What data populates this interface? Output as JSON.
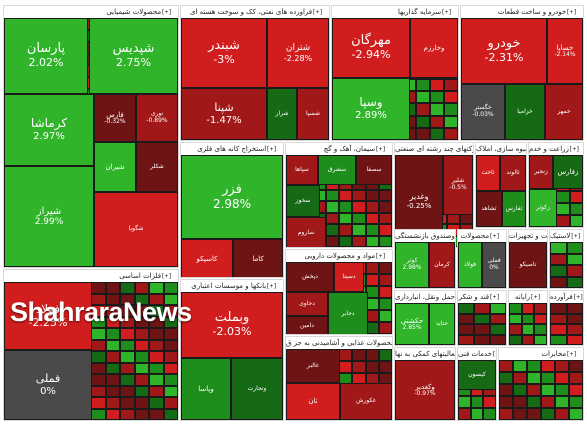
{
  "logo_text": "ShahraraNews",
  "colors": {
    "strong_up": "#2fb42a",
    "up": "#1f8d1c",
    "weak_up": "#166a15",
    "flat": "#4a4a4a",
    "weak_down": "#6e1414",
    "down": "#a01818",
    "strong_down": "#d11d1d"
  },
  "chart_data": {
    "type": "treemap",
    "unit": "%",
    "sectors": [
      {
        "name": "محصولات شیمیایی",
        "toggle": "[+]",
        "tiles": [
          {
            "name": "شپدیس",
            "change": 2.75
          },
          {
            "name": "پارسان",
            "change": 2.02
          },
          {
            "name": "کرماشا",
            "change": 2.97
          },
          {
            "name": "شیراز",
            "change": 2.99
          },
          {
            "name": "فارس",
            "change": -0.32
          },
          {
            "name": "نوری",
            "change": -0.89
          },
          {
            "name": "شیران",
            "change": null
          },
          {
            "name": "شکلر",
            "change": null
          },
          {
            "name": "شگویا",
            "change": null
          }
        ]
      },
      {
        "name": "فراورده های نفتی، کک و سوخت هسته ای",
        "toggle": "[+]",
        "tiles": [
          {
            "name": "شبندر",
            "change": -3
          },
          {
            "name": "شتران",
            "change": -2.28
          },
          {
            "name": "شپنا",
            "change": -1.47
          },
          {
            "name": "شراز",
            "change": null
          },
          {
            "name": "شسپا",
            "change": null
          }
        ]
      },
      {
        "name": "سرمایه گذاریها",
        "toggle": "[+]",
        "tiles": [
          {
            "name": "مهرگان",
            "change": -2.94
          },
          {
            "name": "وسپا",
            "change": 2.89
          },
          {
            "name": "وخارزم",
            "change": null
          }
        ]
      },
      {
        "name": "خودرو و ساخت قطعات",
        "toggle": "[+]",
        "tiles": [
          {
            "name": "خودرو",
            "change": -2.31
          },
          {
            "name": "خساپا",
            "change": -2.14
          },
          {
            "name": "خگستر",
            "change": -0.03
          },
          {
            "name": "خزامیا",
            "change": null
          },
          {
            "name": "خمهر",
            "change": null
          }
        ]
      },
      {
        "name": "استخراج کانه های فلزی",
        "toggle": "[+]",
        "tiles": [
          {
            "name": "فزر",
            "change": 2.98
          },
          {
            "name": "کاما",
            "change": null
          },
          {
            "name": "کاسپکو",
            "change": null
          }
        ]
      },
      {
        "name": "سیمان، آهک و گچ",
        "toggle": "[+]",
        "tiles": [
          {
            "name": "سپاها",
            "change": null
          },
          {
            "name": "سصفا",
            "change": null
          },
          {
            "name": "سشرق",
            "change": null
          },
          {
            "name": "سخوز",
            "change": null
          },
          {
            "name": "ساروم",
            "change": null
          }
        ]
      },
      {
        "name": "شرکتهای چند رشته ای صنعتی",
        "toggle": "[+]",
        "tiles": [
          {
            "name": "وغدیر",
            "change": -0.25
          },
          {
            "name": "شلیر",
            "change": -0.5
          }
        ]
      },
      {
        "name": "انبوه سازی، املاک",
        "toggle": "[+]",
        "tiles": [
          {
            "name": "ثاخت",
            "change": null
          },
          {
            "name": "ثالوند",
            "change": null
          },
          {
            "name": "ثشاهد",
            "change": null
          },
          {
            "name": "ثفارس",
            "change": null
          }
        ]
      },
      {
        "name": "زراعت و خدم",
        "toggle": "[+]",
        "tiles": [
          {
            "name": "زفارس",
            "change": null
          },
          {
            "name": "زنجیر",
            "change": null
          },
          {
            "name": "زکوثر",
            "change": null
          }
        ]
      },
      {
        "name": "مواد و محصولات دارویی",
        "toggle": "[+]",
        "tiles": [
          {
            "name": "دپخش",
            "change": null
          },
          {
            "name": "دسینا",
            "change": null
          },
          {
            "name": "دحاوی",
            "change": null
          },
          {
            "name": "دامین",
            "change": null
          },
          {
            "name": "دجابر",
            "change": null
          }
        ]
      },
      {
        "name": "بیمه وصندوق بازنشستگی",
        "toggle": "[+]",
        "tiles": [
          {
            "name": "کوثر",
            "change": 2.98
          },
          {
            "name": "کرمان",
            "change": null
          },
          {
            "name": "وتوس",
            "change": null
          }
        ]
      },
      {
        "name": "محصولات",
        "toggle": "[+]",
        "tiles": [
          {
            "name": "فولاد",
            "change": null
          },
          {
            "name": "فملی",
            "change": 0
          }
        ]
      },
      {
        "name": "فلزات اساسی",
        "toggle": "[+]",
        "tiles": [
          {
            "name": "فولاد",
            "change": -2.25
          },
          {
            "name": "فملی",
            "change": 0
          }
        ]
      },
      {
        "name": "بانکها و موسسات اعتباری",
        "toggle": "[+]",
        "tiles": [
          {
            "name": "وبملت",
            "change": -2.03
          },
          {
            "name": "وپاسا",
            "change": null
          },
          {
            "name": "وتجارت",
            "change": null
          }
        ]
      },
      {
        "name": "حمل ونقل، انبارداری",
        "toggle": "[+]",
        "tiles": [
          {
            "name": "حکشتی",
            "change": 2.85
          },
          {
            "name": "حتاید",
            "change": null
          }
        ]
      },
      {
        "name": "محصولات غذایی و آشامیدنی به جز ق",
        "toggle": "[+]",
        "tiles": [
          {
            "name": "غالبر",
            "change": null
          },
          {
            "name": "تان",
            "change": null
          },
          {
            "name": "غکورش",
            "change": null
          }
        ]
      },
      {
        "name": "ماشین آلات و تجهیزات",
        "toggle": "[+]",
        "tiles": [
          {
            "name": "تاصیکو",
            "change": null
          }
        ]
      },
      {
        "name": "فعالیتهای کمکی به نها",
        "toggle": "[+]",
        "tiles": [
          {
            "name": "وکغدیر",
            "change": -0.97
          }
        ]
      },
      {
        "name": "لاستیک",
        "toggle": "[+]",
        "tiles": []
      },
      {
        "name": "خدمات فنی",
        "toggle": "[+]",
        "tiles": [
          {
            "name": "کیسون",
            "change": null
          }
        ]
      },
      {
        "name": "قند و شکر",
        "toggle": "[+]",
        "tiles": []
      },
      {
        "name": "رایانه",
        "toggle": "[+]",
        "tiles": []
      },
      {
        "name": "فرآورده",
        "toggle": "[+]",
        "tiles": []
      },
      {
        "name": "مخابرات",
        "toggle": "[+]",
        "tiles": []
      }
    ]
  }
}
